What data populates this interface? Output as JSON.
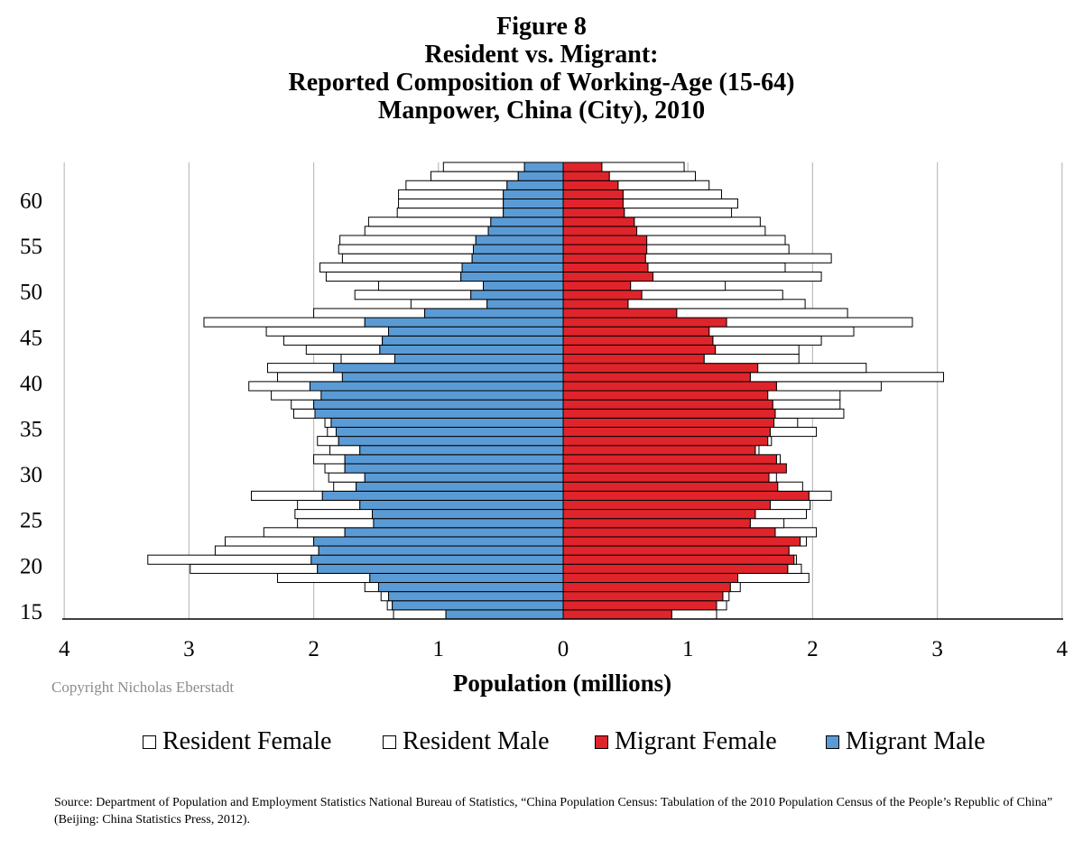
{
  "titles": {
    "line1": "Figure 8",
    "line2": "Resident vs. Migrant:",
    "line3": "Reported Composition of Working-Age (15-64)",
    "line4": "Manpower, China (City),  2010"
  },
  "copyright": "Copyright Nicholas Eberstadt",
  "source": "Source: Department of Population and Employment Statistics National Bureau of Statistics, “China Population Census: Tabulation of the 2010 Population Census of the People’s Republic of China” (Beijing: China Statistics Press, 2012).",
  "chart_data": {
    "type": "bar",
    "orientation": "horizontal population pyramid",
    "title": "Figure 8 Resident vs. Migrant: Reported Composition of Working-Age (15-64) Manpower, China (City), 2010",
    "xlabel": "Population (millions)",
    "ylabel": "",
    "xlim": [
      -4,
      4
    ],
    "x_ticks": [
      4,
      3,
      2,
      1,
      0,
      1,
      2,
      3,
      4
    ],
    "ages": [
      15,
      16,
      17,
      18,
      19,
      20,
      21,
      22,
      23,
      24,
      25,
      26,
      27,
      28,
      29,
      30,
      31,
      32,
      33,
      34,
      35,
      36,
      37,
      38,
      39,
      40,
      41,
      42,
      43,
      44,
      45,
      46,
      47,
      48,
      49,
      50,
      51,
      52,
      53,
      54,
      55,
      56,
      57,
      58,
      59,
      60,
      61,
      62,
      63,
      64
    ],
    "y_tick_labels": [
      "15",
      "20",
      "25",
      "30",
      "35",
      "40",
      "45",
      "50",
      "55",
      "60"
    ],
    "legend_position": "bottom",
    "grid": "vertical",
    "series": [
      {
        "name": "Resident Female",
        "side": "right",
        "color": "#ffffff",
        "values": [
          0.36,
          0.08,
          0.05,
          0.08,
          0.57,
          0.11,
          0.02,
          -0.18,
          0.05,
          0.33,
          0.27,
          0.41,
          0.32,
          0.18,
          0.2,
          0.06,
          0.0,
          0.03,
          0.03,
          0.03,
          0.37,
          0.19,
          0.55,
          0.54,
          0.58,
          0.84,
          1.55,
          0.87,
          0.76,
          0.67,
          0.87,
          1.16,
          1.49,
          1.37,
          1.42,
          1.13,
          0.76,
          1.35,
          1.1,
          1.49,
          1.14,
          1.11,
          1.03,
          1.01,
          0.86,
          0.92,
          0.79,
          0.73,
          0.69,
          0.66
        ]
      },
      {
        "name": "Migrant Female",
        "side": "right",
        "color": "#e0242b",
        "values": [
          0.87,
          1.23,
          1.28,
          1.34,
          1.4,
          1.8,
          1.85,
          1.81,
          1.9,
          1.7,
          1.5,
          1.54,
          1.66,
          1.97,
          1.72,
          1.65,
          1.79,
          1.71,
          1.54,
          1.64,
          1.66,
          1.69,
          1.7,
          1.68,
          1.64,
          1.71,
          1.5,
          1.56,
          1.13,
          1.22,
          1.2,
          1.17,
          1.31,
          0.91,
          0.52,
          0.63,
          0.54,
          0.72,
          0.68,
          0.66,
          0.67,
          0.67,
          0.59,
          0.57,
          0.49,
          0.48,
          0.48,
          0.44,
          0.37,
          0.31
        ]
      },
      {
        "name": "Resident Male",
        "side": "left",
        "color": "#ffffff",
        "values": [
          0.42,
          0.04,
          0.06,
          0.11,
          0.74,
          1.02,
          1.31,
          0.83,
          0.71,
          0.65,
          0.61,
          0.62,
          0.5,
          0.57,
          0.18,
          0.29,
          0.16,
          0.25,
          0.24,
          0.17,
          0.07,
          0.05,
          0.17,
          0.18,
          0.4,
          0.49,
          0.52,
          0.53,
          0.43,
          0.59,
          0.79,
          0.98,
          1.29,
          0.89,
          0.61,
          0.93,
          0.84,
          1.08,
          1.14,
          1.04,
          1.08,
          1.09,
          0.99,
          0.98,
          0.85,
          0.84,
          0.84,
          0.81,
          0.7,
          0.65
        ]
      },
      {
        "name": "Migrant Male",
        "side": "left",
        "color": "#5b9bd5",
        "values": [
          0.94,
          1.37,
          1.4,
          1.48,
          1.55,
          1.97,
          2.02,
          1.96,
          2.0,
          1.75,
          1.52,
          1.53,
          1.63,
          1.93,
          1.66,
          1.59,
          1.75,
          1.75,
          1.63,
          1.8,
          1.82,
          1.86,
          1.99,
          2.0,
          1.94,
          2.03,
          1.77,
          1.84,
          1.35,
          1.47,
          1.45,
          1.4,
          1.59,
          1.11,
          0.61,
          0.74,
          0.64,
          0.82,
          0.81,
          0.73,
          0.72,
          0.7,
          0.6,
          0.58,
          0.48,
          0.48,
          0.48,
          0.45,
          0.36,
          0.31
        ]
      }
    ]
  },
  "legend": [
    {
      "label": "Resident Female",
      "color": "#ffffff"
    },
    {
      "label": "Resident Male",
      "color": "#ffffff"
    },
    {
      "label": "Migrant Female",
      "color": "#e0242b"
    },
    {
      "label": "Migrant Male",
      "color": "#5b9bd5"
    }
  ]
}
